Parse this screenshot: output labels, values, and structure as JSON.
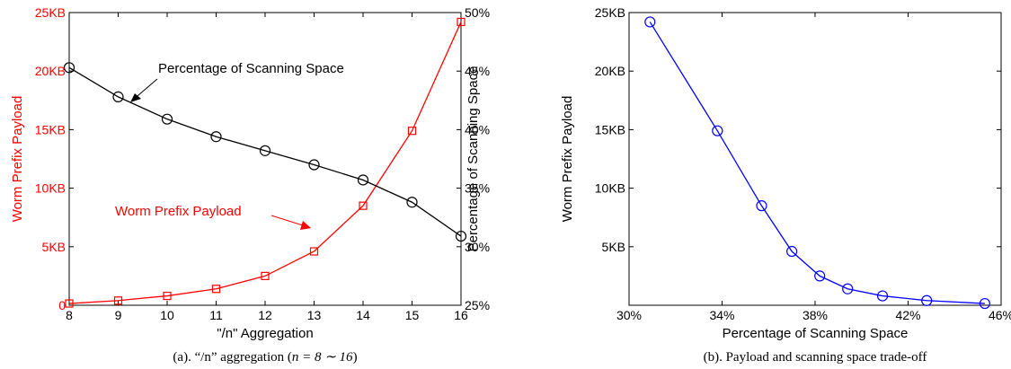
{
  "colors": {
    "red": "#ff0000",
    "black": "#000000",
    "blue": "#0000ff"
  },
  "chart_data": [
    {
      "type": "line",
      "xlabel": "\"/n\" Aggregation",
      "ylabel_left": "Worm Prefix Payload",
      "ylabel_right": "Percentage of Scanning Space",
      "caption_prefix": "(a). “/n” aggregation (",
      "caption_math": "n = 8 ∼ 16",
      "caption_suffix": ")",
      "xlim": [
        8,
        16
      ],
      "ylim_left": [
        0,
        25
      ],
      "ylim_right": [
        25,
        50
      ],
      "x_ticks": [
        8,
        9,
        10,
        11,
        12,
        13,
        14,
        15,
        16
      ],
      "y_ticks_left": [
        "0",
        "5KB",
        "10KB",
        "15KB",
        "20KB",
        "25KB"
      ],
      "y_ticks_right": [
        "25%",
        "30%",
        "35%",
        "40%",
        "45%",
        "50%"
      ],
      "grid": false,
      "series": [
        {
          "name": "Worm Prefix Payload",
          "axis": "left",
          "unit": "KB",
          "marker": "square",
          "color": "#ff0000",
          "x": [
            8,
            9,
            10,
            11,
            12,
            13,
            14,
            15,
            16
          ],
          "y": [
            0.15,
            0.4,
            0.8,
            1.4,
            2.5,
            4.6,
            8.5,
            14.9,
            24.2
          ]
        },
        {
          "name": "Percentage of Scanning Space",
          "axis": "right",
          "unit": "%",
          "marker": "circle",
          "color": "#000000",
          "x": [
            8,
            9,
            10,
            11,
            12,
            13,
            14,
            15,
            16
          ],
          "y": [
            45.3,
            42.8,
            40.9,
            39.4,
            38.2,
            37.0,
            35.7,
            33.8,
            30.9
          ]
        }
      ]
    },
    {
      "type": "line",
      "xlabel": "Percentage of Scanning Space",
      "ylabel": "Worm Prefix Payload",
      "caption": "(b). Payload and scanning space trade-off",
      "xlim": [
        30,
        46
      ],
      "ylim": [
        0,
        25
      ],
      "x_ticks": [
        "30%",
        "34%",
        "38%",
        "42%",
        "46%"
      ],
      "y_ticks": [
        "5KB",
        "10KB",
        "15KB",
        "20KB",
        "25KB"
      ],
      "grid": false,
      "series": [
        {
          "marker": "circle",
          "color": "#0000ff",
          "x": [
            30.9,
            33.8,
            35.7,
            37.0,
            38.2,
            39.4,
            40.9,
            42.8,
            45.3
          ],
          "y": [
            24.2,
            14.9,
            8.5,
            4.6,
            2.5,
            1.4,
            0.8,
            0.4,
            0.15
          ]
        }
      ]
    }
  ]
}
